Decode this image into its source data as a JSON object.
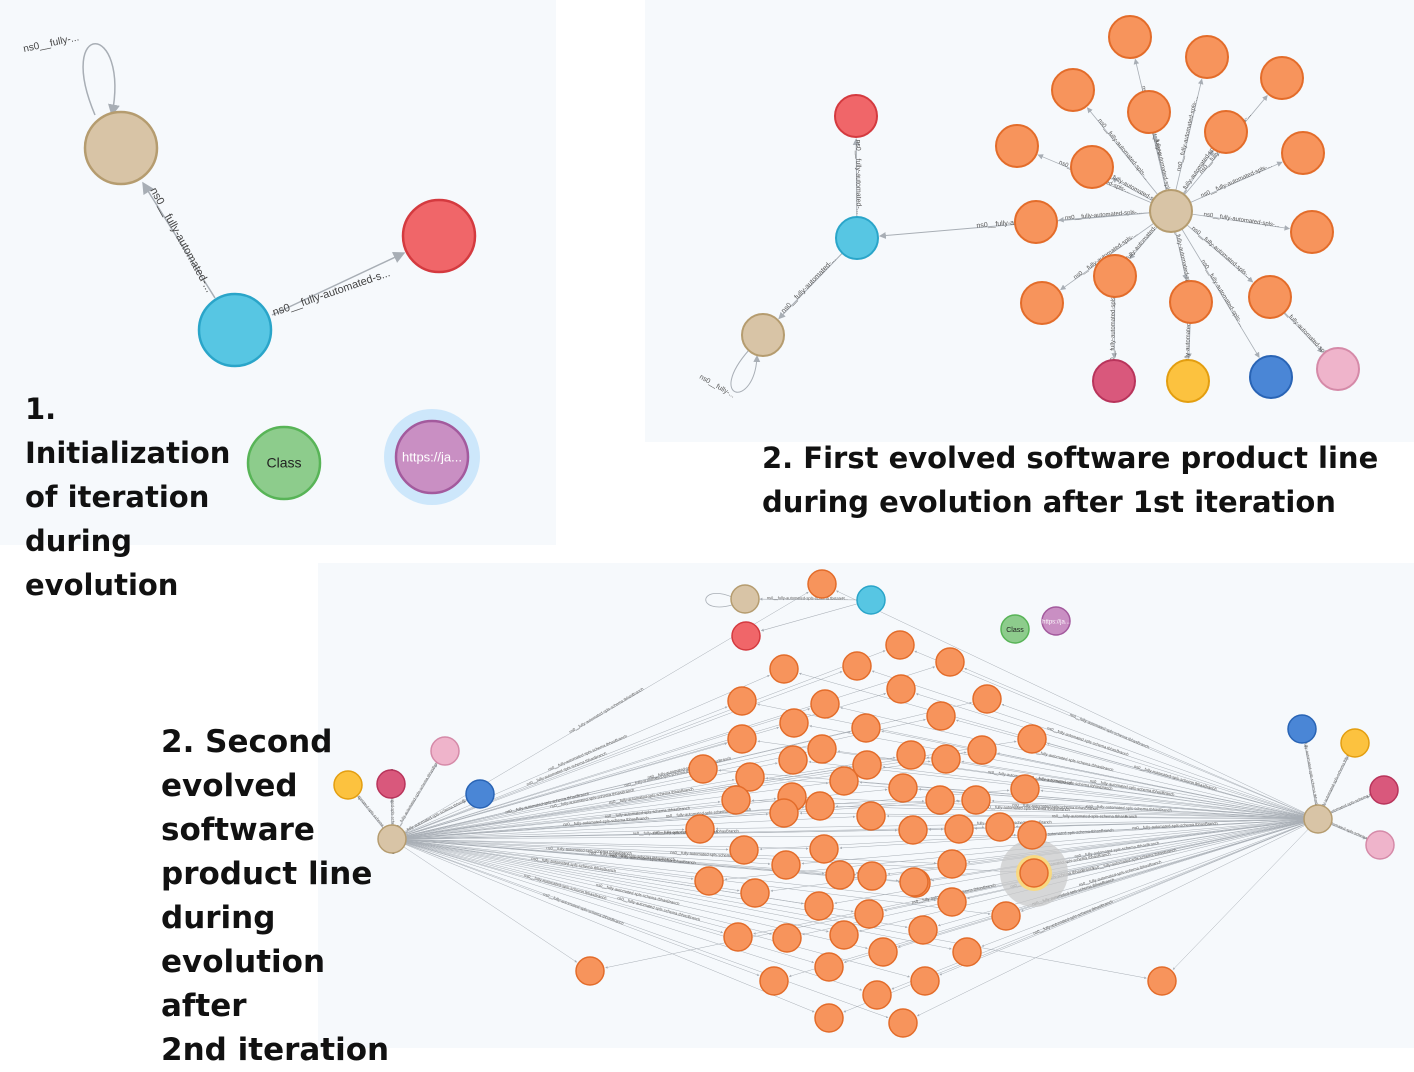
{
  "captions": {
    "panel1": "1. Initialization\nof iteration\nduring\nevolution",
    "panel2": "2. First evolved software product line\nduring evolution after 1st iteration",
    "panel3": "2. Second\nevolved\nsoftware\nproduct line\nduring\nevolution after\n2nd iteration"
  },
  "node_colors": {
    "tan": "#d8c4a6",
    "tan_border": "#b59c6f",
    "red": "#f06669",
    "red_border": "#d43a3f",
    "cyan": "#57c6e3",
    "cyan_border": "#2aa5c9",
    "green": "#8dcc8c",
    "green_border": "#58b457",
    "purple": "#c98fc3",
    "purple_border": "#a35a9d",
    "purple_halo": "#cde7fb",
    "orange": "#f7945c",
    "orange_border": "#e36c2a",
    "crimson": "#d9587c",
    "crimson_border": "#b8345b",
    "yellow": "#fcc23f",
    "yellow_border": "#e39e10",
    "blue": "#4a86d6",
    "blue_border": "#2964b5",
    "pink": "#efb4cb",
    "pink_border": "#d58aa8",
    "edge": "#a8aeb5"
  },
  "panel1": {
    "self_loop_label": "ns0__fully-...",
    "edge_cyan_tan_label": "ns0__fully-automated-...",
    "edge_cyan_red_label": "ns0__fully-automated-s...",
    "class_node_label": "Class",
    "url_node_label": "https://ja..."
  },
  "panel2": {
    "edge_tan_cyan_label": "ns0__fully-automated-...",
    "edge_cyan_red_label": "ns0__fully-automated-...",
    "edge_hub_cyan_label": "ns0__fully-automated-...",
    "hub_edge_label": "ns0__fully-automated-spls-...",
    "self_loop_label": "ns0__fully-..."
  },
  "panel3": {
    "top_edge_label": "ns0__fully-automated-spls-schema.tbstateR...",
    "class_node_label": "Class",
    "url_node_label": "https://ja...",
    "edge_label": "ns0__fully-automated-spls-schema.tbhasBranch"
  }
}
